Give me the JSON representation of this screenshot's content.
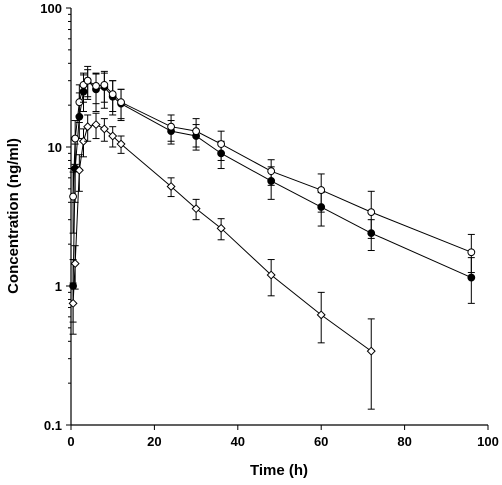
{
  "chart_data": {
    "type": "line",
    "xlabel": "Time (h)",
    "ylabel": "Concentration (ng/ml)",
    "x_scale": "linear",
    "y_scale": "log",
    "xlim": [
      0,
      100
    ],
    "ylim": [
      0.1,
      100
    ],
    "x_ticks": [
      "0",
      "20",
      "40",
      "60",
      "80",
      "100"
    ],
    "y_ticks": [
      "0.1",
      "1",
      "10",
      "100"
    ],
    "grid": false,
    "series": [
      {
        "marker": "filled-circle",
        "x": [
          0.5,
          1,
          2,
          3,
          4,
          6,
          8,
          10,
          12,
          24,
          30,
          36,
          48,
          60,
          72,
          96
        ],
        "y": [
          1.0,
          7.0,
          16.5,
          25.0,
          30.0,
          26.0,
          27.0,
          23.0,
          20.5,
          13.0,
          12.0,
          9.0,
          5.7,
          3.7,
          2.4,
          1.15
        ],
        "err_low": [
          0.45,
          3.0,
          5.0,
          7.0,
          8.0,
          8.0,
          8.0,
          6.0,
          5.0,
          2.5,
          2.5,
          2.0,
          1.5,
          1.0,
          0.6,
          0.4
        ],
        "err_high": [
          0.55,
          3.5,
          8.0,
          8.0,
          8.0,
          8.0,
          8.0,
          7.0,
          5.5,
          2.5,
          2.5,
          2.0,
          1.5,
          1.0,
          0.6,
          0.45
        ]
      },
      {
        "marker": "open-circle",
        "x": [
          0.5,
          1,
          2,
          3,
          4,
          6,
          8,
          10,
          12,
          24,
          30,
          36,
          48,
          60,
          72,
          96
        ],
        "y": [
          4.4,
          11.5,
          21.0,
          28.0,
          30.0,
          27.5,
          28.0,
          24.0,
          21.0,
          14.0,
          13.0,
          10.5,
          6.7,
          4.9,
          3.4,
          1.75
        ],
        "err_low": [
          2.0,
          4.0,
          6.0,
          7.0,
          7.0,
          7.0,
          7.0,
          6.0,
          5.0,
          3.0,
          3.0,
          2.5,
          1.4,
          1.5,
          1.2,
          0.5
        ],
        "err_high": [
          2.2,
          4.0,
          7.0,
          6.0,
          6.0,
          6.0,
          6.0,
          6.0,
          5.0,
          3.0,
          3.0,
          2.5,
          1.4,
          1.5,
          1.4,
          0.6
        ]
      },
      {
        "marker": "open-diamond",
        "x": [
          0.5,
          1,
          2,
          3,
          4,
          6,
          8,
          10,
          12,
          24,
          30,
          36,
          48,
          60,
          72
        ],
        "y": [
          0.75,
          1.45,
          6.8,
          11.0,
          14.0,
          14.5,
          13.5,
          12.0,
          10.5,
          5.2,
          3.6,
          2.6,
          1.2,
          0.62,
          0.34
        ],
        "err_low": [
          0.3,
          0.5,
          2.0,
          2.5,
          3.0,
          3.0,
          2.5,
          2.0,
          1.5,
          0.8,
          0.6,
          0.45,
          0.35,
          0.23,
          0.21
        ],
        "err_high": [
          0.3,
          0.5,
          2.0,
          2.5,
          3.0,
          3.0,
          2.5,
          2.0,
          1.5,
          0.8,
          0.6,
          0.45,
          0.35,
          0.28,
          0.24
        ]
      }
    ]
  }
}
